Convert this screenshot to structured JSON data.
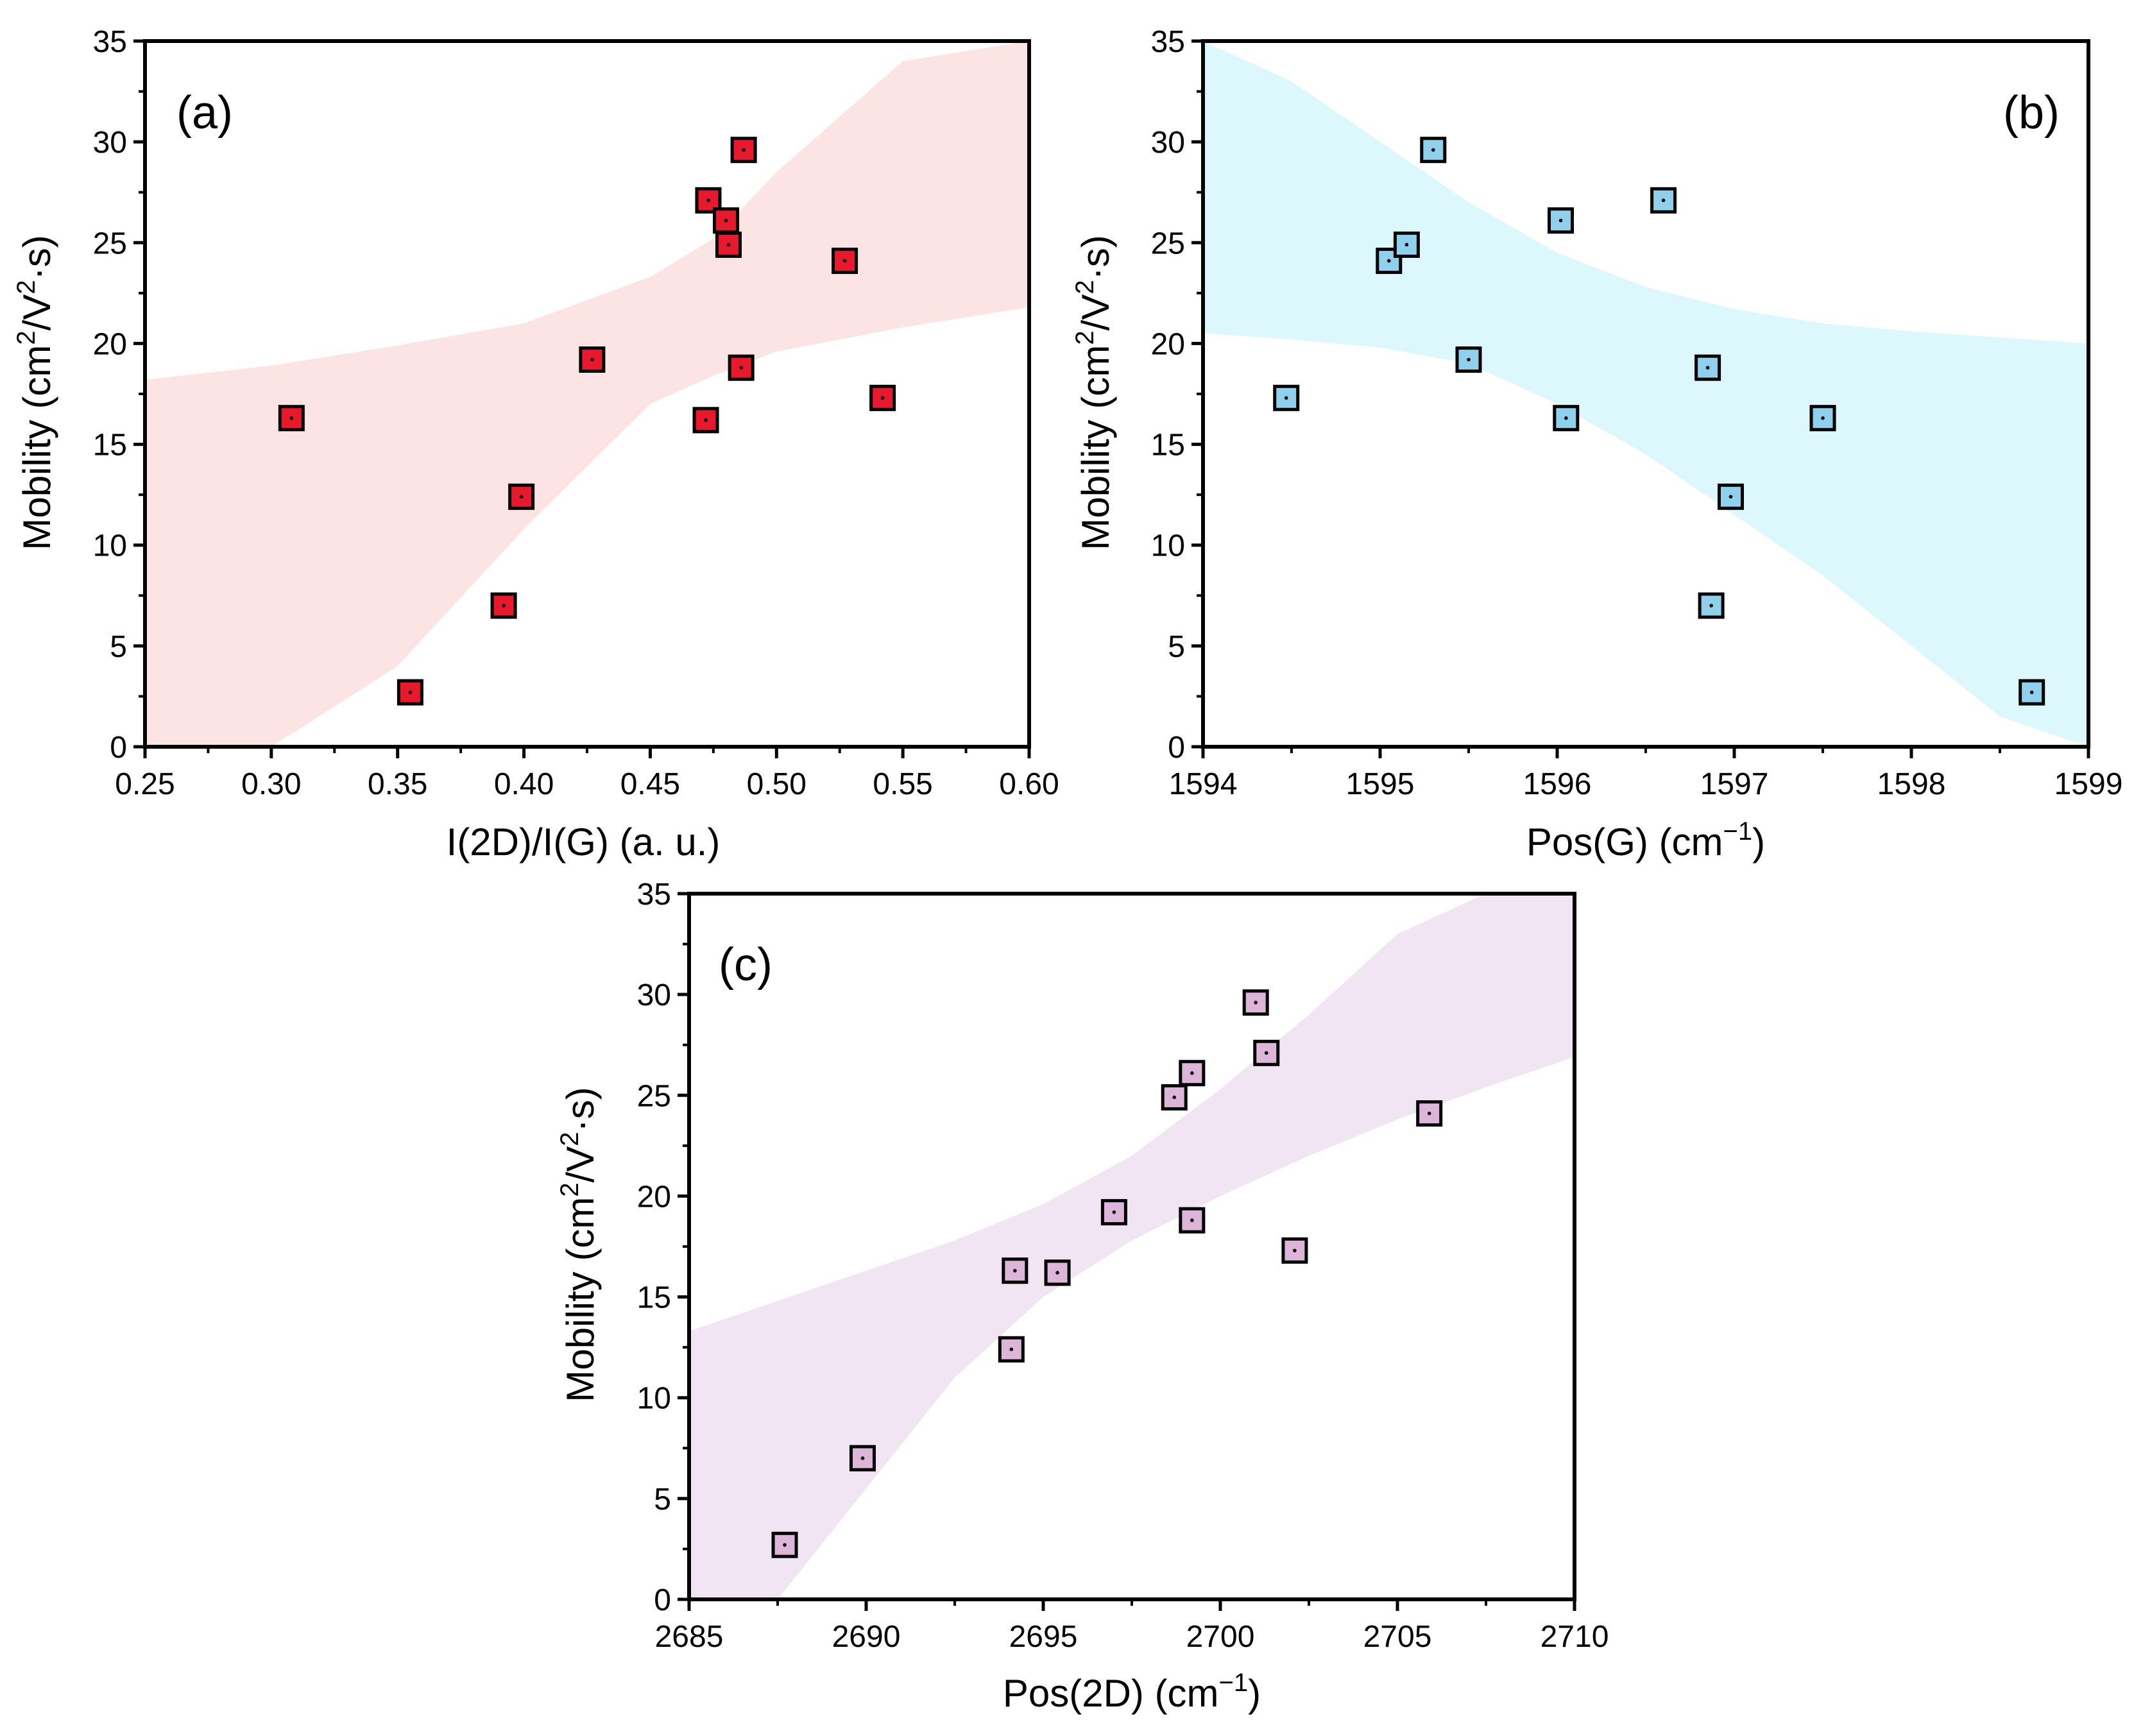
{
  "figure": {
    "colors": {
      "panel_a_marker": "#e8192c",
      "panel_a_band": "#fde4e4",
      "panel_b_marker": "#8fd0ec",
      "panel_b_band": "#dcf8fd",
      "panel_c_marker": "#dcb5d8",
      "panel_c_band": "#f1e4f3",
      "axis": "#000000"
    }
  },
  "chart_data": [
    {
      "id": "a",
      "type": "scatter",
      "label": "(a)",
      "xlabel": "I(2D)/I(G) (a. u.)",
      "ylabel": "Mobility (cm²/V²·s)",
      "ylabel_parts": [
        "Mobility (cm",
        "2",
        "/V",
        "2",
        "·s)"
      ],
      "xlim": [
        0.25,
        0.6
      ],
      "ylim": [
        0,
        35
      ],
      "xticks": [
        "0.25",
        "0.30",
        "0.35",
        "0.40",
        "0.45",
        "0.50",
        "0.55",
        "0.60"
      ],
      "yticks": [
        "0",
        "5",
        "10",
        "15",
        "20",
        "25",
        "30",
        "35"
      ],
      "x": [
        0.308,
        0.355,
        0.392,
        0.399,
        0.427,
        0.472,
        0.473,
        0.48,
        0.481,
        0.486,
        0.487,
        0.527,
        0.542
      ],
      "y": [
        16.3,
        2.7,
        7.0,
        12.4,
        19.2,
        16.2,
        27.1,
        26.1,
        24.9,
        18.8,
        29.6,
        24.1,
        17.3
      ],
      "confidence_band": {
        "x": [
          0.25,
          0.3,
          0.35,
          0.4,
          0.45,
          0.475,
          0.5,
          0.55,
          0.6
        ],
        "upper": [
          18.2,
          18.9,
          19.9,
          21.0,
          23.3,
          25.2,
          28.5,
          34.0,
          40.0
        ],
        "lower": [
          -7.0,
          -2.5,
          4.0,
          10.8,
          17.0,
          18.4,
          19.6,
          20.8,
          21.8
        ]
      }
    },
    {
      "id": "b",
      "type": "scatter",
      "label": "(b)",
      "xlabel": "Pos(G) (cm⁻¹)",
      "xlabel_parts": [
        "Pos(G) (cm",
        "−1",
        ")"
      ],
      "ylabel": "Mobility (cm²/V²·s)",
      "ylabel_parts": [
        "Mobility (cm",
        "2",
        "/V",
        "2",
        "·s)"
      ],
      "xlim": [
        1594,
        1599
      ],
      "ylim": [
        0,
        35
      ],
      "xticks": [
        "1594",
        "1595",
        "1596",
        "1597",
        "1598",
        "1599"
      ],
      "yticks": [
        "0",
        "5",
        "10",
        "15",
        "20",
        "25",
        "30",
        "35"
      ],
      "x": [
        1594.47,
        1595.05,
        1595.15,
        1595.3,
        1595.5,
        1596.02,
        1596.05,
        1596.6,
        1596.85,
        1596.87,
        1596.98,
        1597.5,
        1598.68
      ],
      "y": [
        17.3,
        24.1,
        24.9,
        29.6,
        19.2,
        26.1,
        16.3,
        27.1,
        18.8,
        7.0,
        12.4,
        16.3,
        2.7
      ],
      "confidence_band": {
        "x": [
          1594.0,
          1594.5,
          1595.0,
          1595.5,
          1596.0,
          1596.5,
          1597.0,
          1597.5,
          1598.0,
          1598.5,
          1599.0
        ],
        "upper": [
          35.5,
          33.0,
          30.0,
          27.0,
          24.5,
          22.8,
          21.7,
          21.0,
          20.6,
          20.3,
          20.0
        ],
        "lower": [
          20.5,
          20.2,
          19.8,
          19.0,
          17.0,
          14.5,
          11.5,
          8.5,
          5.0,
          1.5,
          -2.0
        ]
      }
    },
    {
      "id": "c",
      "type": "scatter",
      "label": "(c)",
      "xlabel": "Pos(2D) (cm⁻¹)",
      "xlabel_parts": [
        "Pos(2D) (cm",
        "−1",
        ")"
      ],
      "ylabel": "Mobility (cm²/V²·s)",
      "ylabel_parts": [
        "Mobility (cm",
        "2",
        "/V",
        "2",
        "·s)"
      ],
      "xlim": [
        2685,
        2710
      ],
      "ylim": [
        0,
        35
      ],
      "xticks": [
        "2685",
        "2690",
        "2695",
        "2700",
        "2705",
        "2710"
      ],
      "yticks": [
        "0",
        "5",
        "10",
        "15",
        "20",
        "25",
        "30",
        "35"
      ],
      "x": [
        2687.7,
        2689.9,
        2694.1,
        2694.2,
        2695.4,
        2697.0,
        2698.7,
        2699.2,
        2699.2,
        2701.0,
        2701.3,
        2702.1,
        2705.9
      ],
      "y": [
        2.7,
        7.0,
        12.4,
        16.3,
        16.2,
        19.2,
        24.9,
        26.1,
        18.8,
        29.6,
        27.1,
        17.3,
        24.1
      ],
      "confidence_band": {
        "x": [
          2685,
          2687.5,
          2690,
          2692.5,
          2695,
          2697.5,
          2700,
          2702.5,
          2705,
          2707.5,
          2710
        ],
        "upper": [
          13.3,
          14.8,
          16.3,
          17.8,
          19.6,
          22.0,
          25.3,
          29.0,
          33.0,
          37.0,
          41.0
        ],
        "lower": [
          -8.0,
          -1.0,
          5.5,
          11.0,
          15.0,
          17.8,
          20.0,
          22.0,
          23.8,
          25.4,
          26.9
        ]
      }
    }
  ]
}
